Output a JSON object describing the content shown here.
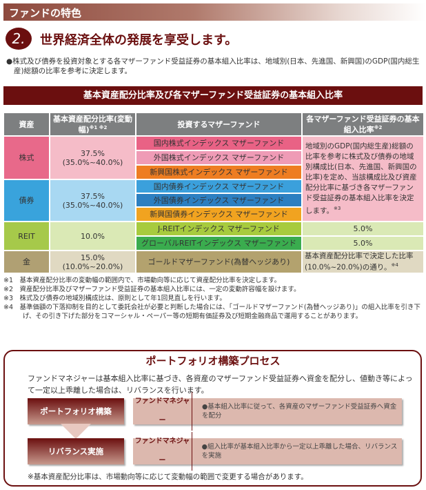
{
  "header": "ファンドの特色",
  "section": {
    "number": "2.",
    "title": "世界経済全体の発展を享受します。"
  },
  "lead": "●株式及び債券を投資対象とする各マザーファンド受益証券の基本組入比率は、地域別(日本、先進国、新興国)のGDP(国内総生産)総額の比率を参考に決定します。",
  "table_title": "基本資産配分比率及び各マザーファンド受益証券の基本組入比率",
  "table": {
    "headers": [
      "資産",
      "基本資産配分比率(変動幅)",
      "投資するマザーファンド",
      "各マザーファンド受益証券の基本組入比率"
    ],
    "header_notes": [
      "※1 ※2",
      "※2"
    ],
    "rows": [
      {
        "asset": "株式",
        "ratio": "37.5%",
        "range": "(35.0%~40.0%)",
        "funds": [
          "国内株式インデックス マザーファンド",
          "外国株式インデックス マザーファンド",
          "新興国株式インデックス マザーファンド"
        ]
      },
      {
        "asset": "債券",
        "ratio": "37.5%",
        "range": "(35.0%~40.0%)",
        "funds": [
          "国内債券インデックス マザーファンド",
          "外国債券インデックス マザーファンド",
          "新興国債券インデックス マザーファンド"
        ]
      },
      {
        "asset": "REIT",
        "ratio": "10.0%",
        "funds": [
          "J-REITインデックス マザーファンド",
          "グローバルREITインデックス マザーファンド"
        ],
        "weights": [
          "5.0%",
          "5.0%"
        ]
      },
      {
        "asset": "金",
        "ratio": "15.0%",
        "range": "(10.0%~20.0%)",
        "funds": [
          "ゴールドマザーファンド(為替ヘッジあり)"
        ],
        "weight": "基本資産配分比率で決定した比率(10.0%~20.0%)の通り。",
        "weight_note": "※4"
      }
    ],
    "merged_text": "地域別のGDP(国内総生産)総額の比率を参考に株式及び債券の地域別構成比(日本、先進国、新興国の比率)を定め、当該構成比及び資産配分比率に基づき各マザーファンド受益証券の基本組入比率を決定します。",
    "merged_note": "※3"
  },
  "footnotes": [
    "※1　基本資産配分比率の変動幅の範囲内で、市場動向等に応じて資産配分比率を決定します。",
    "※2　資産配分比率及びマザーファンド受益証券の基本組入比率には、一定の変動許容幅を設けます。",
    "※3　株式及び債券の地域別構成比は、原則として年1回見直しを行います。",
    "※4　基準価額の下落抑制を目的として委託会社が必要と判断した場合には、「ゴールドマザーファンド(為替ヘッジあり)」の組入比率を引き下げ、その引き下げた部分をコマーシャル・ペーパー等の短期有価証券及び短期金融商品で運用することがあります。"
  ],
  "process": {
    "title": "ポートフォリオ構築プロセス",
    "desc": "ファンドマネジャーは基本組入比率に基づき、各資産のマザーファンド受益証券へ資金を配分し、値動き等によって一定以上乖離した場合は、リバランスを行います。",
    "steps": [
      {
        "label": "ポートフォリオ構築",
        "who": "ファンドマネジャー",
        "text": "●基本組入比率に従って、各資産のマザーファンド受益証券へ資金を配分"
      },
      {
        "label": "リバランス実施",
        "who": "ファンドマネジャー",
        "text": "●組入比率が基本組入比率から一定以上乖離した場合、リバランスを実施"
      }
    ],
    "note": "※基本資産配分比率は、市場動向等に応じて変動幅の範囲で変更する場合があります。"
  },
  "colors": {
    "brand": "#6b0f0f",
    "header_gray": "#7d7f80",
    "stock": "#e8698a",
    "bond": "#39a3dc",
    "reit": "#a6c94a",
    "gold": "#b0a073"
  }
}
